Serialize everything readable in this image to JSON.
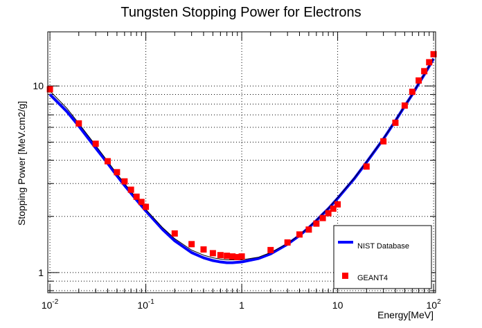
{
  "chart_data": {
    "type": "line",
    "title": "Tungsten Stopping Power for Electrons",
    "xlabel": "Energy[MeV]",
    "ylabel": "Stopping Power [MeV.cm2/g]",
    "x_scale": "log",
    "y_scale": "log",
    "xlim": [
      0.0095,
      105
    ],
    "ylim": [
      0.78,
      19.5
    ],
    "grid": true,
    "legend_position": "bottom-right",
    "x_tick_labels": [
      {
        "value": 0.01,
        "base": "10",
        "exp": "-2"
      },
      {
        "value": 0.1,
        "base": "10",
        "exp": "-1"
      },
      {
        "value": 1,
        "base": "1",
        "exp": ""
      },
      {
        "value": 10,
        "base": "10",
        "exp": ""
      },
      {
        "value": 100,
        "base": "10",
        "exp": "2"
      }
    ],
    "y_tick_labels": [
      {
        "value": 1,
        "label": "1"
      },
      {
        "value": 10,
        "label": "10"
      }
    ],
    "series": [
      {
        "name": "NIST Database",
        "kind": "line",
        "color": "#0000ff",
        "x": [
          0.01,
          0.015,
          0.02,
          0.03,
          0.04,
          0.05,
          0.06,
          0.08,
          0.1,
          0.15,
          0.2,
          0.3,
          0.4,
          0.5,
          0.6,
          0.7,
          0.8,
          1.0,
          1.5,
          2.0,
          3.0,
          4.0,
          5.0,
          6.0,
          7.0,
          8.0,
          10.0,
          15.0,
          20.0,
          30.0,
          40.0,
          50.0,
          60.0,
          70.0,
          80.0,
          100.0
        ],
        "y": [
          9.0,
          7.3,
          6.1,
          4.65,
          3.85,
          3.3,
          2.93,
          2.45,
          2.14,
          1.7,
          1.48,
          1.28,
          1.2,
          1.16,
          1.14,
          1.13,
          1.13,
          1.14,
          1.19,
          1.26,
          1.42,
          1.58,
          1.74,
          1.9,
          2.06,
          2.2,
          2.5,
          3.2,
          3.9,
          5.2,
          6.5,
          7.8,
          9.0,
          10.3,
          11.5,
          14.0
        ]
      },
      {
        "name": "",
        "kind": "line",
        "color": "#000000",
        "x": [
          0.01,
          0.015,
          0.02,
          0.03,
          0.04,
          0.05,
          0.06,
          0.08,
          0.1,
          0.15,
          0.2,
          0.3,
          0.4,
          0.5,
          0.6,
          0.7,
          0.8,
          1.0,
          1.5,
          2.0,
          3.0,
          4.0,
          5.0,
          6.0,
          7.0,
          8.0,
          10.0,
          15.0,
          20.0,
          30.0,
          40.0,
          50.0,
          60.0,
          70.0,
          80.0,
          100.0
        ],
        "y": [
          9.4,
          7.6,
          6.3,
          4.8,
          3.95,
          3.38,
          3.0,
          2.5,
          2.18,
          1.74,
          1.52,
          1.32,
          1.24,
          1.2,
          1.18,
          1.17,
          1.17,
          1.17,
          1.21,
          1.28,
          1.43,
          1.59,
          1.75,
          1.91,
          2.07,
          2.21,
          2.52,
          3.22,
          3.92,
          5.22,
          6.52,
          7.82,
          9.02,
          10.32,
          11.52,
          14.02
        ]
      },
      {
        "name": "GEANT4",
        "kind": "marker",
        "color": "#ff0000",
        "x": [
          0.01,
          0.02,
          0.03,
          0.04,
          0.05,
          0.06,
          0.07,
          0.08,
          0.09,
          0.1,
          0.2,
          0.3,
          0.4,
          0.5,
          0.6,
          0.7,
          0.8,
          0.9,
          1.0,
          2.0,
          3.0,
          4.0,
          5.0,
          6.0,
          7.0,
          8.0,
          9.0,
          10.0,
          20.0,
          30.0,
          40.0,
          50.0,
          60.0,
          70.0,
          80.0,
          90.0,
          100.0
        ],
        "y": [
          9.6,
          6.3,
          4.9,
          3.95,
          3.45,
          3.08,
          2.78,
          2.55,
          2.39,
          2.25,
          1.62,
          1.42,
          1.33,
          1.27,
          1.24,
          1.23,
          1.22,
          1.21,
          1.22,
          1.32,
          1.45,
          1.6,
          1.7,
          1.83,
          1.96,
          2.08,
          2.2,
          2.32,
          3.7,
          5.05,
          6.35,
          7.85,
          9.3,
          10.7,
          12.0,
          13.4,
          14.8
        ]
      }
    ]
  }
}
